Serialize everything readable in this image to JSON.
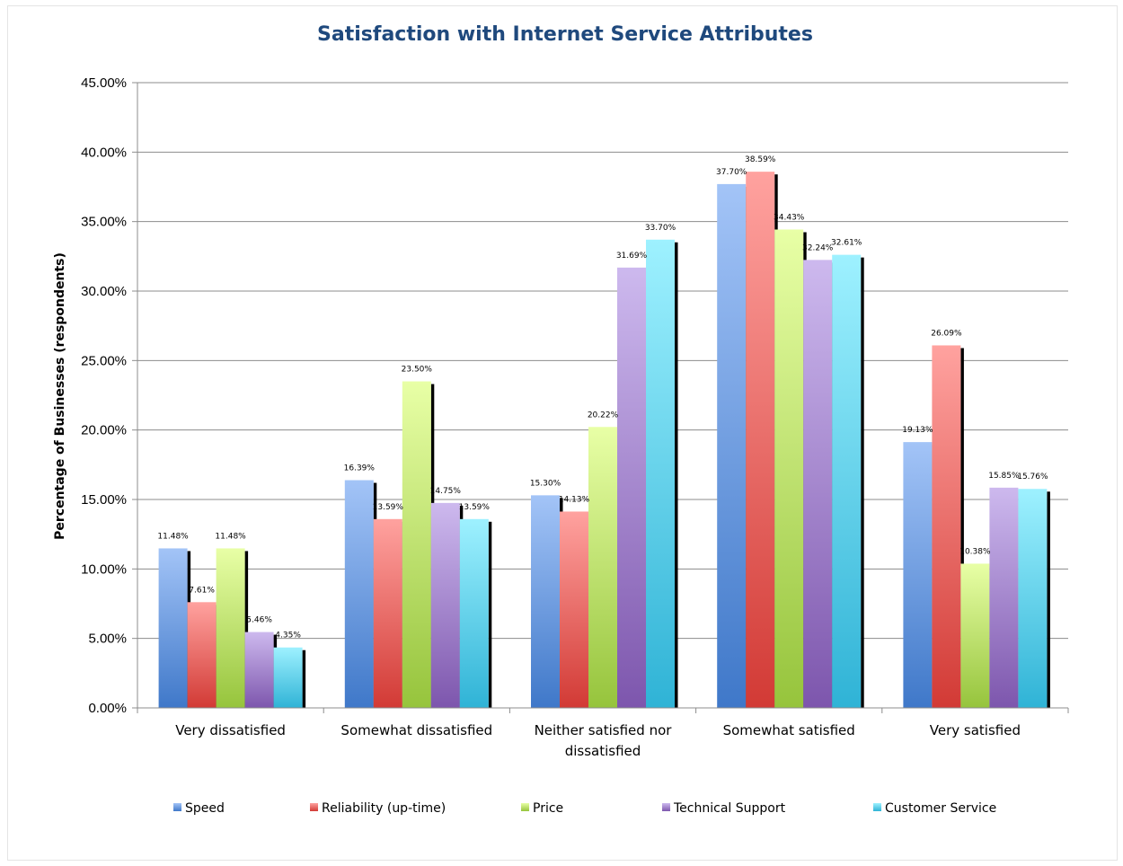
{
  "chart_data": {
    "type": "bar",
    "title": "Satisfaction with Internet Service Attributes",
    "xlabel": "",
    "ylabel": "Percentage of Businesses (respondents)",
    "ylim": [
      0,
      45
    ],
    "y_unit": "%",
    "y_ticks": [
      "0.00%",
      "5.00%",
      "10.00%",
      "15.00%",
      "20.00%",
      "25.00%",
      "30.00%",
      "35.00%",
      "40.00%",
      "45.00%"
    ],
    "grid": true,
    "legend_position": "bottom",
    "categories": [
      "Very dissatisfied",
      "Somewhat dissatisfied",
      "Neither satisfied nor dissatisfied",
      "Somewhat satisfied",
      "Very satisfied"
    ],
    "category_label_lines": [
      [
        "Very dissatisfied"
      ],
      [
        "Somewhat dissatisfied"
      ],
      [
        "Neither satisfied nor",
        "dissatisfied"
      ],
      [
        "Somewhat satisfied"
      ],
      [
        "Very satisfied"
      ]
    ],
    "series": [
      {
        "name": "Speed",
        "color_top": "#a3c4f7",
        "color_bottom": "#3f78c9",
        "values": [
          11.48,
          16.39,
          15.3,
          37.7,
          19.13
        ],
        "labels": [
          "11.48%",
          "16.39%",
          "15.30%",
          "37.70%",
          "19.13%"
        ]
      },
      {
        "name": "Reliability (up-time)",
        "color_top": "#ffa29f",
        "color_bottom": "#d23a35",
        "values": [
          7.61,
          13.59,
          14.13,
          38.59,
          26.09
        ],
        "labels": [
          "7.61%",
          "13.59%",
          "14.13%",
          "38.59%",
          "26.09%"
        ]
      },
      {
        "name": "Price",
        "color_top": "#e8ffa6",
        "color_bottom": "#96c43c",
        "values": [
          11.48,
          23.5,
          20.22,
          34.43,
          10.38
        ],
        "labels": [
          "11.48%",
          "23.50%",
          "20.22%",
          "34.43%",
          "10.38%"
        ]
      },
      {
        "name": "Technical Support",
        "color_top": "#cdb9ee",
        "color_bottom": "#7d56ad",
        "values": [
          5.46,
          14.75,
          31.69,
          32.24,
          15.85
        ],
        "labels": [
          "5.46%",
          "14.75%",
          "31.69%",
          "32.24%",
          "15.85%"
        ]
      },
      {
        "name": "Customer Service",
        "color_top": "#9ef1ff",
        "color_bottom": "#2fb3d6",
        "values": [
          4.35,
          13.59,
          33.7,
          32.61,
          15.76
        ],
        "labels": [
          "4.35%",
          "13.59%",
          "33.70%",
          "32.61%",
          "15.76%"
        ]
      }
    ]
  }
}
